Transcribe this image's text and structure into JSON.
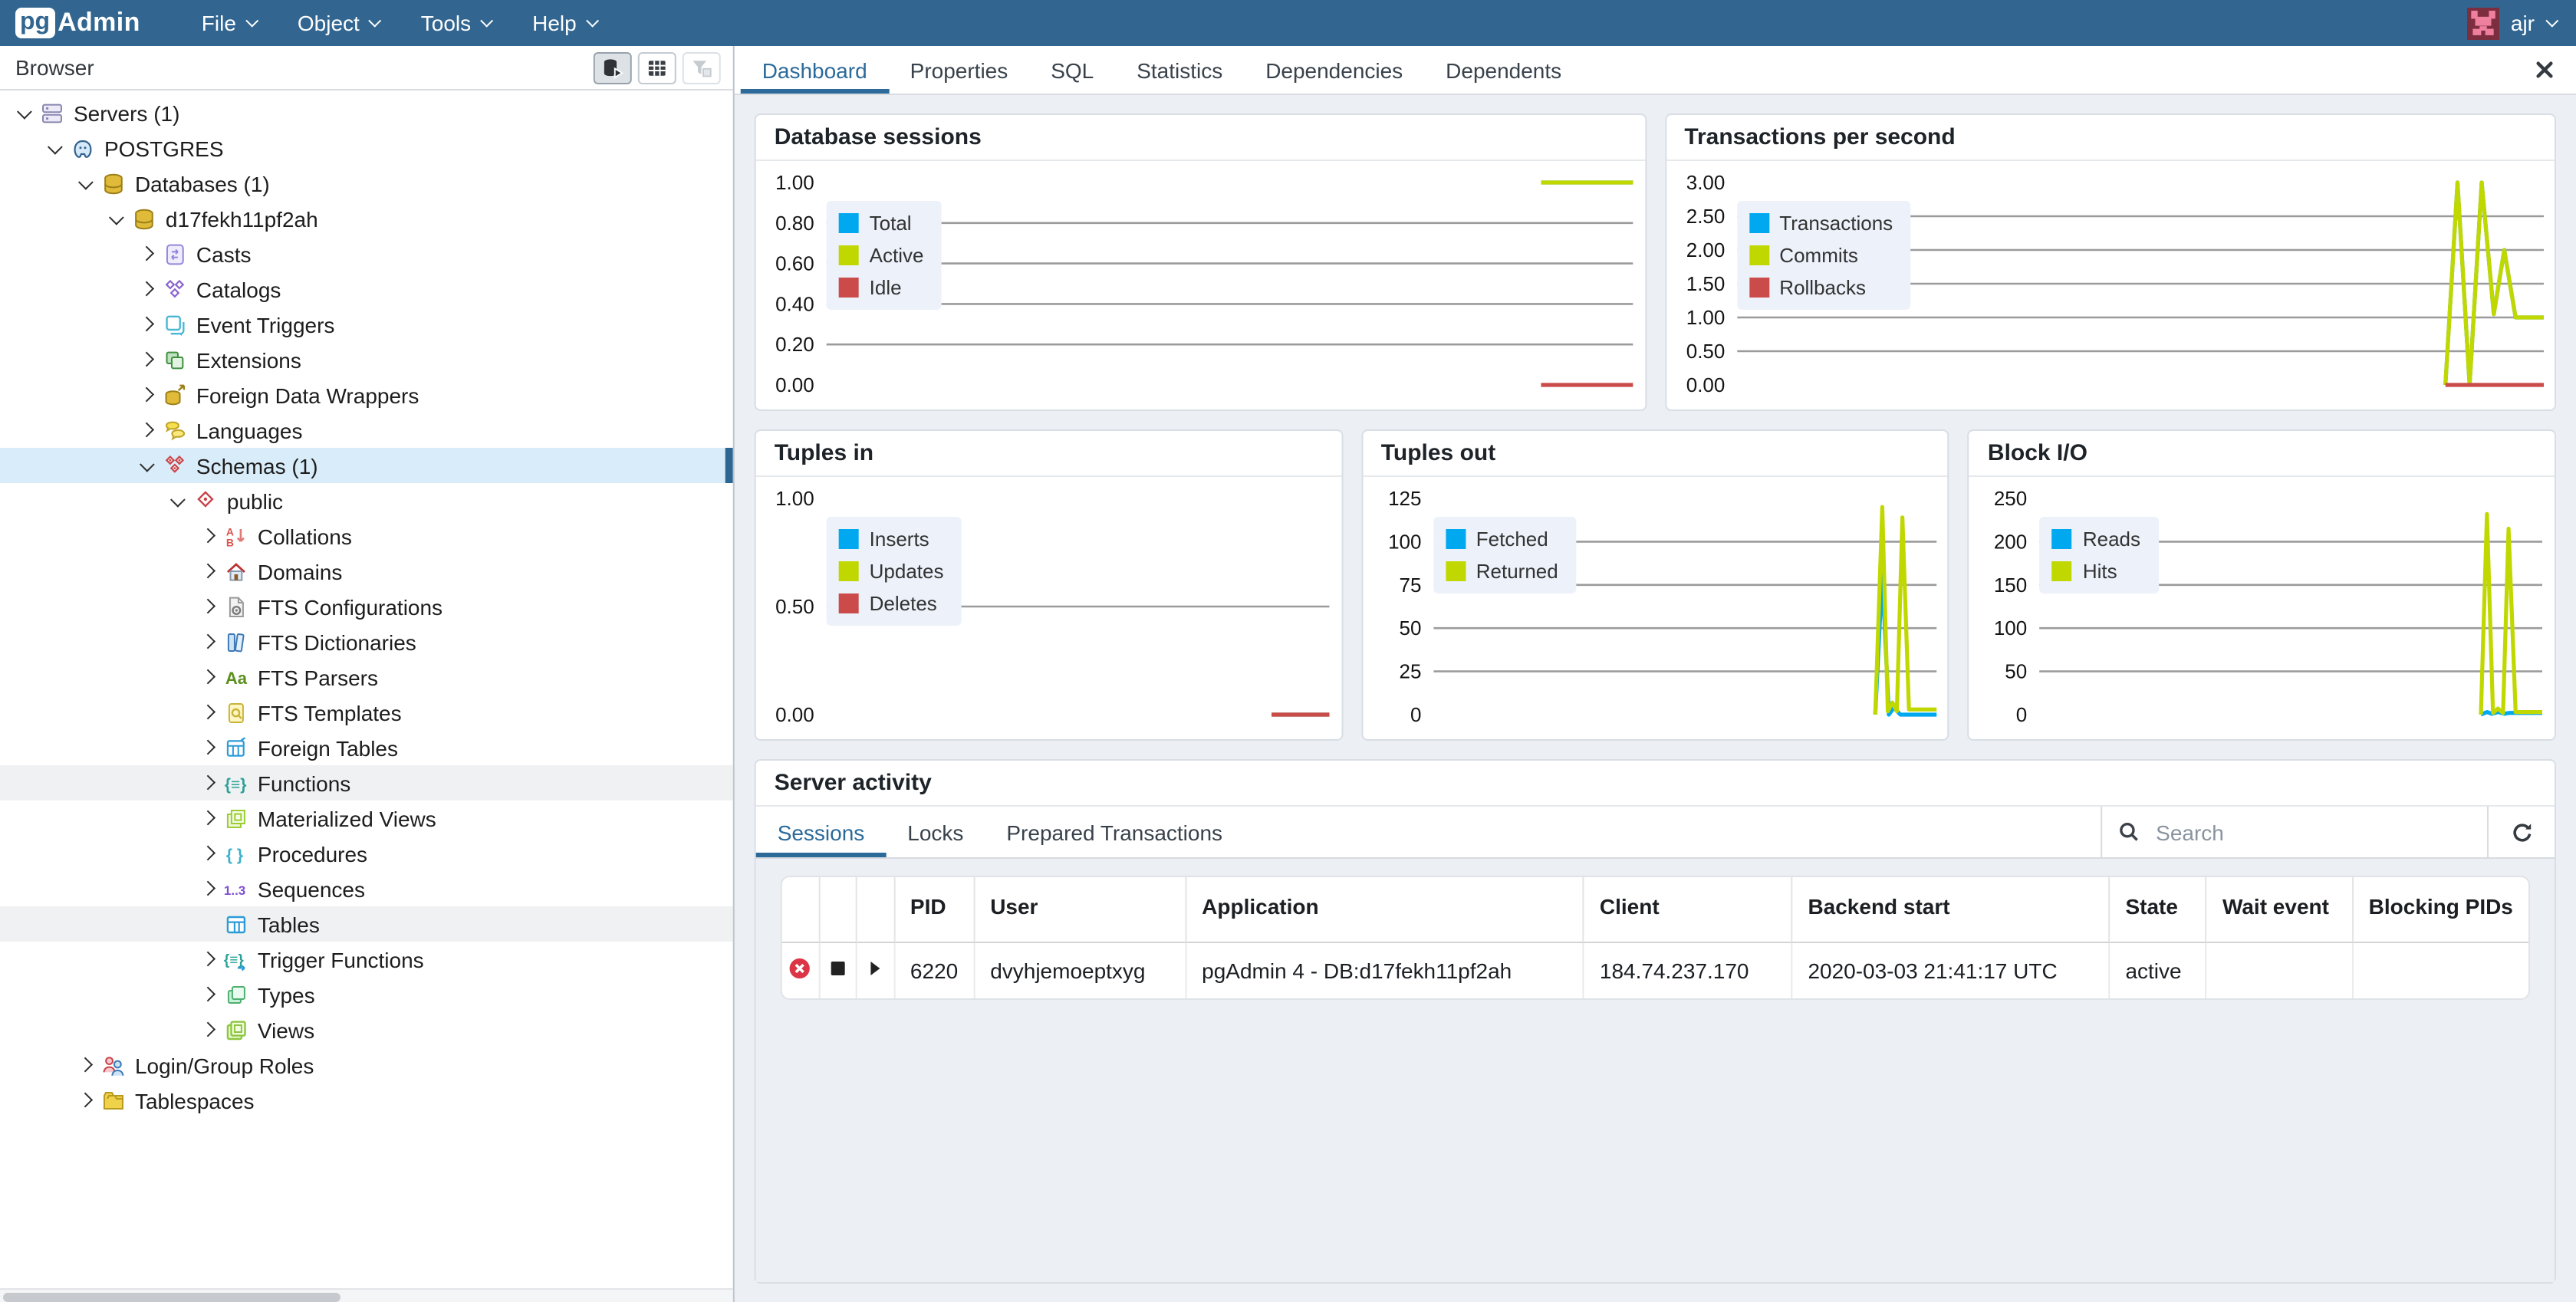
{
  "colors": {
    "navbar_bg": "#326690",
    "accent_blue": "#2c6693",
    "selection_bg": "#d9ecf9",
    "series_blue": "#00A8F0",
    "series_green": "#C0D800",
    "series_red": "#CB4B4B"
  },
  "navbar": {
    "logo_pg": "pg",
    "logo_admin": "Admin",
    "menus": [
      {
        "label": "File"
      },
      {
        "label": "Object"
      },
      {
        "label": "Tools"
      },
      {
        "label": "Help"
      }
    ],
    "user": "ajr"
  },
  "sidebar": {
    "title": "Browser",
    "header_buttons": [
      {
        "name": "toggle-sql-editor-button",
        "icon": "database-play-icon",
        "active": true,
        "disabled": false
      },
      {
        "name": "toggle-grid-button",
        "icon": "grid-icon",
        "active": false,
        "disabled": false
      },
      {
        "name": "filter-button",
        "icon": "filter-icon",
        "active": false,
        "disabled": true
      }
    ],
    "tree": [
      {
        "label": "Servers (1)",
        "icon": "server",
        "level": 0,
        "expand": "expanded",
        "state": ""
      },
      {
        "label": "POSTGRES",
        "icon": "postgres",
        "level": 1,
        "expand": "expanded",
        "state": ""
      },
      {
        "label": "Databases (1)",
        "icon": "database",
        "level": 2,
        "expand": "expanded",
        "state": ""
      },
      {
        "label": "d17fekh11pf2ah",
        "icon": "database",
        "level": 3,
        "expand": "expanded",
        "state": ""
      },
      {
        "label": "Casts",
        "icon": "cast",
        "level": 4,
        "expand": "collapsed",
        "state": ""
      },
      {
        "label": "Catalogs",
        "icon": "catalog",
        "level": 4,
        "expand": "collapsed",
        "state": ""
      },
      {
        "label": "Event Triggers",
        "icon": "event-trigger",
        "level": 4,
        "expand": "collapsed",
        "state": ""
      },
      {
        "label": "Extensions",
        "icon": "extension",
        "level": 4,
        "expand": "collapsed",
        "state": ""
      },
      {
        "label": "Foreign Data Wrappers",
        "icon": "foreign-data-wrapper",
        "level": 4,
        "expand": "collapsed",
        "state": ""
      },
      {
        "label": "Languages",
        "icon": "language",
        "level": 4,
        "expand": "collapsed",
        "state": ""
      },
      {
        "label": "Schemas (1)",
        "icon": "schemas",
        "level": 4,
        "expand": "expanded",
        "state": "selected"
      },
      {
        "label": "public",
        "icon": "schema",
        "level": 5,
        "expand": "expanded",
        "state": ""
      },
      {
        "label": "Collations",
        "icon": "collation",
        "level": 6,
        "expand": "collapsed",
        "state": ""
      },
      {
        "label": "Domains",
        "icon": "domain",
        "level": 6,
        "expand": "collapsed",
        "state": ""
      },
      {
        "label": "FTS Configurations",
        "icon": "fts-configuration",
        "level": 6,
        "expand": "collapsed",
        "state": ""
      },
      {
        "label": "FTS Dictionaries",
        "icon": "fts-dictionary",
        "level": 6,
        "expand": "collapsed",
        "state": ""
      },
      {
        "label": "FTS Parsers",
        "icon": "fts-parser",
        "level": 6,
        "expand": "collapsed",
        "state": ""
      },
      {
        "label": "FTS Templates",
        "icon": "fts-template",
        "level": 6,
        "expand": "collapsed",
        "state": ""
      },
      {
        "label": "Foreign Tables",
        "icon": "foreign-table",
        "level": 6,
        "expand": "collapsed",
        "state": ""
      },
      {
        "label": "Functions",
        "icon": "function",
        "level": 6,
        "expand": "collapsed",
        "state": "hover"
      },
      {
        "label": "Materialized Views",
        "icon": "materialized-view",
        "level": 6,
        "expand": "collapsed",
        "state": ""
      },
      {
        "label": "Procedures",
        "icon": "procedure",
        "level": 6,
        "expand": "collapsed",
        "state": ""
      },
      {
        "label": "Sequences",
        "icon": "sequence",
        "level": 6,
        "expand": "collapsed",
        "state": ""
      },
      {
        "label": "Tables",
        "icon": "table",
        "level": 6,
        "expand": "none",
        "state": "hover"
      },
      {
        "label": "Trigger Functions",
        "icon": "trigger-function",
        "level": 6,
        "expand": "collapsed",
        "state": ""
      },
      {
        "label": "Types",
        "icon": "type",
        "level": 6,
        "expand": "collapsed",
        "state": ""
      },
      {
        "label": "Views",
        "icon": "view",
        "level": 6,
        "expand": "collapsed",
        "state": ""
      },
      {
        "label": "Login/Group Roles",
        "icon": "role",
        "level": 2,
        "expand": "collapsed",
        "state": ""
      },
      {
        "label": "Tablespaces",
        "icon": "tablespace",
        "level": 2,
        "expand": "collapsed",
        "state": ""
      }
    ]
  },
  "tabs": {
    "items": [
      "Dashboard",
      "Properties",
      "SQL",
      "Statistics",
      "Dependencies",
      "Dependents"
    ],
    "active": "Dashboard"
  },
  "chart_data": [
    {
      "type": "line",
      "title": "Database sessions",
      "ylim": [
        0,
        1
      ],
      "yticks": [
        {
          "label": "1.00",
          "value": 1.0
        },
        {
          "label": "0.80",
          "value": 0.8
        },
        {
          "label": "0.60",
          "value": 0.6
        },
        {
          "label": "0.40",
          "value": 0.4
        },
        {
          "label": "0.20",
          "value": 0.2
        },
        {
          "label": "0.00",
          "value": 0.0
        }
      ],
      "grid": "horizontal",
      "legend_position": "top-left",
      "series": [
        {
          "name": "Total",
          "color": "#00A8F0",
          "points": [
            [
              0.886,
              1
            ],
            [
              1,
              1
            ]
          ]
        },
        {
          "name": "Active",
          "color": "#C0D800",
          "points": [
            [
              0.886,
              1
            ],
            [
              1,
              1
            ]
          ]
        },
        {
          "name": "Idle",
          "color": "#CB4B4B",
          "points": [
            [
              0.886,
              0
            ],
            [
              1,
              0
            ]
          ]
        }
      ]
    },
    {
      "type": "line",
      "title": "Transactions per second",
      "ylim": [
        0,
        3
      ],
      "yticks": [
        {
          "label": "3.00",
          "value": 3.0
        },
        {
          "label": "2.50",
          "value": 2.5
        },
        {
          "label": "2.00",
          "value": 2.0
        },
        {
          "label": "1.50",
          "value": 1.5
        },
        {
          "label": "1.00",
          "value": 1.0
        },
        {
          "label": "0.50",
          "value": 0.5
        },
        {
          "label": "0.00",
          "value": 0.0
        }
      ],
      "grid": "horizontal",
      "legend_position": "top-left",
      "series": [
        {
          "name": "Transactions",
          "color": "#00A8F0",
          "points": [
            [
              0.878,
              0
            ],
            [
              0.893,
              3
            ],
            [
              0.908,
              0
            ],
            [
              0.923,
              3
            ],
            [
              0.938,
              1.05
            ],
            [
              0.951,
              2
            ],
            [
              0.965,
              1
            ],
            [
              1,
              1
            ]
          ]
        },
        {
          "name": "Commits",
          "color": "#C0D800",
          "points": [
            [
              0.878,
              0
            ],
            [
              0.893,
              3
            ],
            [
              0.908,
              0
            ],
            [
              0.923,
              3
            ],
            [
              0.938,
              1.05
            ],
            [
              0.951,
              2
            ],
            [
              0.965,
              1
            ],
            [
              1,
              1
            ]
          ]
        },
        {
          "name": "Rollbacks",
          "color": "#CB4B4B",
          "points": [
            [
              0.878,
              0
            ],
            [
              1,
              0
            ]
          ]
        }
      ]
    },
    {
      "type": "line",
      "title": "Tuples in",
      "ylim": [
        0,
        1
      ],
      "yticks": [
        {
          "label": "1.00",
          "value": 1.0
        },
        {
          "label": "0.50",
          "value": 0.5
        },
        {
          "label": "0.00",
          "value": 0.0
        }
      ],
      "grid": "horizontal",
      "legend_position": "top-left",
      "series": [
        {
          "name": "Inserts",
          "color": "#00A8F0",
          "points": [
            [
              0.885,
              0
            ],
            [
              1,
              0
            ]
          ]
        },
        {
          "name": "Updates",
          "color": "#C0D800",
          "points": [
            [
              0.885,
              0
            ],
            [
              1,
              0
            ]
          ]
        },
        {
          "name": "Deletes",
          "color": "#CB4B4B",
          "points": [
            [
              0.885,
              0
            ],
            [
              1,
              0
            ]
          ]
        }
      ]
    },
    {
      "type": "line",
      "title": "Tuples out",
      "ylim": [
        0,
        125
      ],
      "yticks": [
        {
          "label": "125",
          "value": 125
        },
        {
          "label": "100",
          "value": 100
        },
        {
          "label": "75",
          "value": 75
        },
        {
          "label": "50",
          "value": 50
        },
        {
          "label": "25",
          "value": 25
        },
        {
          "label": "0",
          "value": 0
        }
      ],
      "grid": "horizontal",
      "legend_position": "top-left",
      "series": [
        {
          "name": "Fetched",
          "color": "#00A8F0",
          "points": [
            [
              0.878,
              0
            ],
            [
              0.892,
              82
            ],
            [
              0.905,
              0
            ],
            [
              0.915,
              4
            ],
            [
              0.928,
              0
            ],
            [
              1,
              0
            ]
          ]
        },
        {
          "name": "Returned",
          "color": "#C0D800",
          "points": [
            [
              0.878,
              0
            ],
            [
              0.892,
              120
            ],
            [
              0.903,
              2
            ],
            [
              0.912,
              7
            ],
            [
              0.921,
              2
            ],
            [
              0.932,
              114
            ],
            [
              0.945,
              3
            ],
            [
              1,
              3
            ]
          ]
        }
      ]
    },
    {
      "type": "line",
      "title": "Block I/O",
      "ylim": [
        0,
        250
      ],
      "yticks": [
        {
          "label": "250",
          "value": 250
        },
        {
          "label": "200",
          "value": 200
        },
        {
          "label": "150",
          "value": 150
        },
        {
          "label": "100",
          "value": 100
        },
        {
          "label": "50",
          "value": 50
        },
        {
          "label": "0",
          "value": 0
        }
      ],
      "grid": "horizontal",
      "legend_position": "top-left",
      "series": [
        {
          "name": "Reads",
          "color": "#00A8F0",
          "points": [
            [
              0.878,
              0
            ],
            [
              0.89,
              3
            ],
            [
              0.9,
              1
            ],
            [
              0.912,
              3
            ],
            [
              0.925,
              1
            ],
            [
              0.935,
              2
            ],
            [
              1,
              2
            ]
          ]
        },
        {
          "name": "Hits",
          "color": "#C0D800",
          "points": [
            [
              0.878,
              0
            ],
            [
              0.89,
              232
            ],
            [
              0.902,
              2
            ],
            [
              0.912,
              7
            ],
            [
              0.922,
              2
            ],
            [
              0.933,
              215
            ],
            [
              0.947,
              3
            ],
            [
              1,
              3
            ]
          ]
        }
      ]
    }
  ],
  "server_activity": {
    "title": "Server activity",
    "tabs": [
      "Sessions",
      "Locks",
      "Prepared Transactions"
    ],
    "active_tab": "Sessions",
    "search_placeholder": "Search",
    "row_actions": [
      "terminate",
      "cancel",
      "details"
    ],
    "columns": [
      "",
      "",
      "",
      "PID",
      "User",
      "Application",
      "Client",
      "Backend start",
      "State",
      "Wait event",
      "Blocking PIDs"
    ],
    "rows": [
      {
        "cells": [
          "6220",
          "dvyhjemoeptxyg",
          "pgAdmin 4 - DB:d17fekh11pf2ah",
          "184.74.237.170",
          "2020-03-03 21:41:17 UTC",
          "active",
          "",
          ""
        ]
      }
    ]
  }
}
